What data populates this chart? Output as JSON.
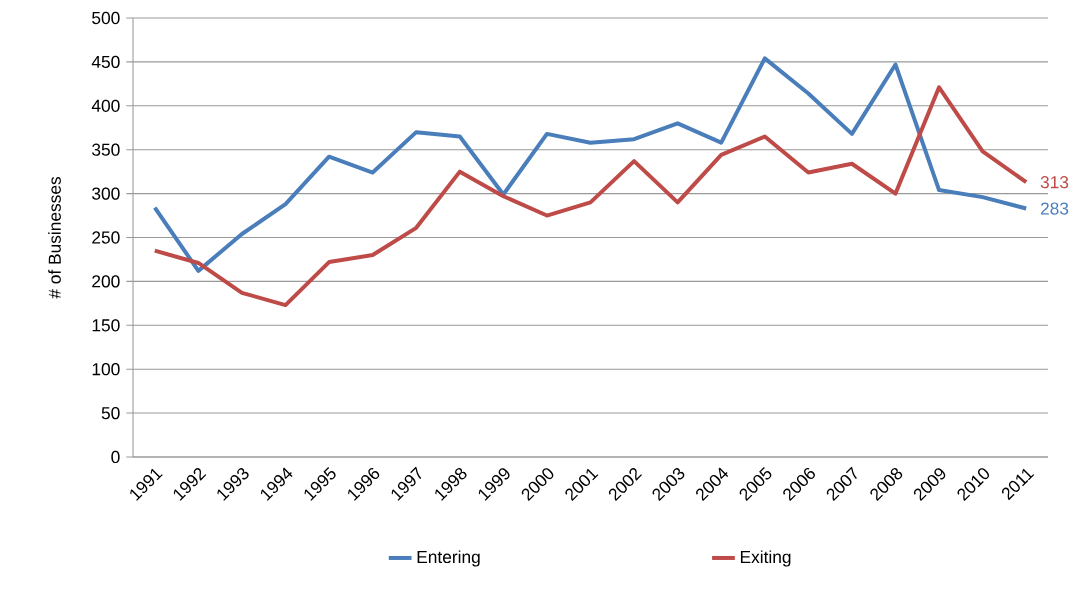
{
  "chart_data": {
    "type": "line",
    "ylabel": "# of  Businesses",
    "categories": [
      "1991",
      "1992",
      "1993",
      "1994",
      "1995",
      "1996",
      "1997",
      "1998",
      "1999",
      "2000",
      "2001",
      "2002",
      "2003",
      "2004",
      "2005",
      "2006",
      "2007",
      "2008",
      "2009",
      "2010",
      "2011"
    ],
    "series": [
      {
        "name": "Entering",
        "color": "#4a7ebb",
        "values": [
          284,
          212,
          254,
          288,
          342,
          324,
          370,
          365,
          299,
          368,
          358,
          362,
          380,
          358,
          454,
          414,
          368,
          447,
          304,
          296,
          283
        ]
      },
      {
        "name": "Exiting",
        "color": "#be4b48",
        "values": [
          235,
          221,
          187,
          173,
          222,
          230,
          261,
          325,
          297,
          275,
          290,
          337,
          290,
          344,
          365,
          324,
          334,
          300,
          421,
          348,
          313
        ]
      }
    ],
    "annotations": [
      {
        "text": "313",
        "x": "2011",
        "y": 313
      },
      {
        "text": "283",
        "x": "2011",
        "y": 283
      }
    ],
    "ylim": [
      0,
      500
    ],
    "yticks": [
      0,
      50,
      100,
      150,
      200,
      250,
      300,
      350,
      400,
      450,
      500
    ],
    "grid": "y",
    "legend": "bottom",
    "marker": "none",
    "line_style": "solid"
  }
}
